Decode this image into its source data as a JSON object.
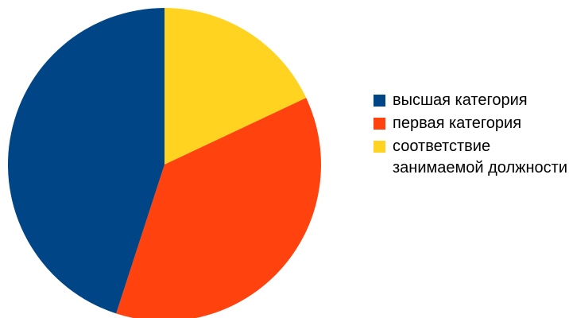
{
  "chart_data": {
    "type": "pie",
    "title": "",
    "legend_position": "right",
    "start_angle_deg": 0,
    "direction": "clockwise",
    "slices": [
      {
        "label": "соответствие занимаемой должности",
        "value": 18,
        "color": "#FFD320"
      },
      {
        "label": "первая категория",
        "value": 37,
        "color": "#FF420E"
      },
      {
        "label": "высшая категория",
        "value": 45,
        "color": "#004586"
      }
    ],
    "legend": [
      {
        "label": "высшая категория",
        "color": "#004586"
      },
      {
        "label": "первая категория",
        "color": "#FF420E"
      },
      {
        "label": "соответствие занимаемой должности",
        "color": "#FFD320"
      }
    ]
  }
}
